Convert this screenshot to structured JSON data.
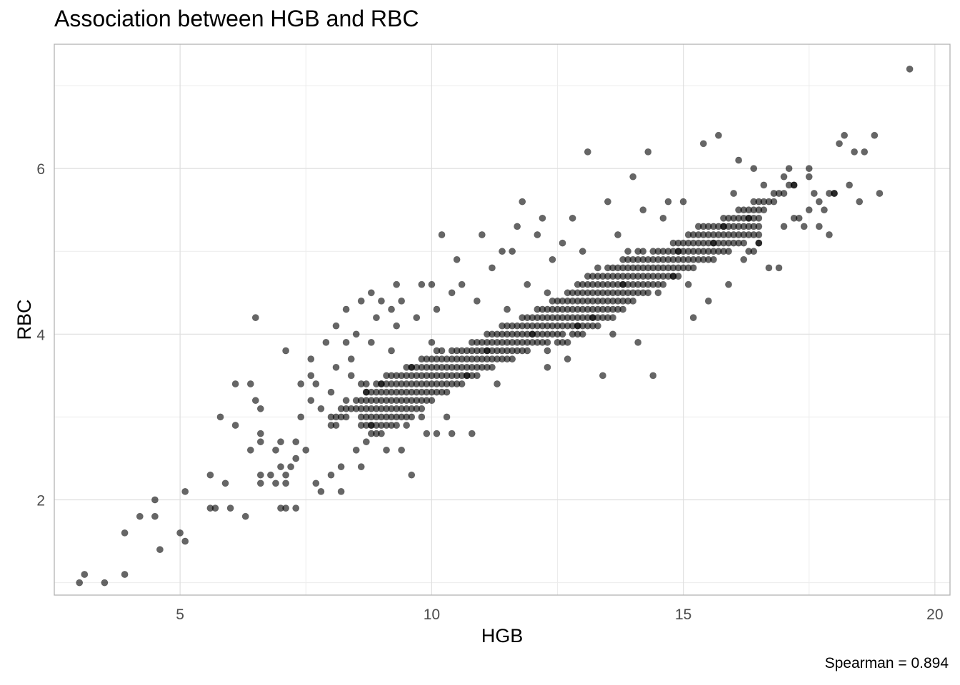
{
  "chart_data": {
    "type": "scatter",
    "title": "Association between HGB and RBC",
    "xlabel": "HGB",
    "ylabel": "RBC",
    "caption": "Spearman = 0.894",
    "xlim": [
      2.5,
      20.3
    ],
    "ylim": [
      0.85,
      7.5
    ],
    "x_ticks": [
      5,
      10,
      15,
      20
    ],
    "y_ticks": [
      2,
      4,
      6
    ],
    "x_tick_labels": [
      "5",
      "10",
      "15",
      "20"
    ],
    "y_tick_labels": [
      "2",
      "4",
      "6"
    ],
    "grid": true,
    "point_color": "#000000",
    "point_opacity": 0.6,
    "points": [
      [
        3.0,
        1.0
      ],
      [
        3.1,
        1.1
      ],
      [
        3.5,
        1.0
      ],
      [
        3.9,
        1.1
      ],
      [
        3.9,
        1.6
      ],
      [
        4.2,
        1.8
      ],
      [
        4.5,
        1.8
      ],
      [
        4.5,
        2.0
      ],
      [
        4.6,
        1.4
      ],
      [
        5.0,
        1.6
      ],
      [
        5.1,
        1.5
      ],
      [
        5.1,
        2.1
      ],
      [
        5.6,
        2.3
      ],
      [
        5.6,
        1.9
      ],
      [
        5.7,
        1.9
      ],
      [
        5.8,
        3.0
      ],
      [
        5.9,
        2.2
      ],
      [
        6.0,
        1.9
      ],
      [
        6.1,
        2.9
      ],
      [
        6.1,
        3.4
      ],
      [
        6.3,
        1.8
      ],
      [
        6.4,
        2.6
      ],
      [
        6.4,
        3.4
      ],
      [
        6.5,
        4.2
      ],
      [
        6.5,
        3.2
      ],
      [
        6.6,
        2.8
      ],
      [
        6.6,
        2.7
      ],
      [
        6.6,
        3.1
      ],
      [
        6.6,
        2.3
      ],
      [
        6.6,
        2.2
      ],
      [
        6.8,
        2.3
      ],
      [
        6.9,
        2.2
      ],
      [
        6.9,
        2.6
      ],
      [
        7.0,
        2.7
      ],
      [
        7.0,
        2.4
      ],
      [
        7.0,
        1.9
      ],
      [
        7.1,
        1.9
      ],
      [
        7.1,
        3.8
      ],
      [
        7.1,
        2.3
      ],
      [
        7.1,
        2.2
      ],
      [
        7.2,
        2.4
      ],
      [
        7.3,
        2.5
      ],
      [
        7.3,
        1.9
      ],
      [
        7.3,
        2.7
      ],
      [
        7.4,
        3.4
      ],
      [
        7.4,
        3.0
      ],
      [
        7.5,
        2.6
      ],
      [
        7.6,
        3.2
      ],
      [
        7.6,
        3.5
      ],
      [
        7.6,
        3.7
      ],
      [
        7.7,
        2.2
      ],
      [
        7.7,
        3.4
      ],
      [
        7.8,
        2.1
      ],
      [
        7.8,
        3.1
      ],
      [
        7.9,
        3.9
      ],
      [
        8.0,
        3.3
      ],
      [
        8.0,
        2.3
      ],
      [
        8.1,
        4.1
      ],
      [
        8.1,
        3.6
      ],
      [
        8.2,
        2.1
      ],
      [
        8.2,
        2.4
      ],
      [
        8.3,
        3.2
      ],
      [
        8.3,
        3.9
      ],
      [
        8.3,
        4.3
      ],
      [
        8.4,
        3.7
      ],
      [
        8.4,
        3.5
      ],
      [
        8.5,
        4.0
      ],
      [
        8.5,
        2.6
      ],
      [
        8.6,
        2.4
      ],
      [
        8.6,
        3.4
      ],
      [
        8.6,
        4.4
      ],
      [
        8.7,
        3.4
      ],
      [
        8.7,
        3.3
      ],
      [
        8.8,
        4.5
      ],
      [
        8.8,
        3.9
      ],
      [
        8.8,
        2.9
      ],
      [
        8.9,
        4.2
      ],
      [
        9.0,
        3.4
      ],
      [
        9.0,
        4.4
      ],
      [
        9.1,
        2.6
      ],
      [
        9.2,
        3.8
      ],
      [
        9.2,
        4.3
      ],
      [
        9.3,
        4.6
      ],
      [
        9.3,
        4.1
      ],
      [
        9.4,
        2.6
      ],
      [
        9.4,
        4.4
      ],
      [
        9.5,
        2.9
      ],
      [
        9.6,
        2.3
      ],
      [
        9.6,
        3.6
      ],
      [
        9.7,
        4.2
      ],
      [
        9.8,
        3.0
      ],
      [
        9.8,
        4.6
      ],
      [
        9.9,
        2.8
      ],
      [
        10.0,
        4.6
      ],
      [
        10.0,
        3.9
      ],
      [
        10.1,
        2.8
      ],
      [
        10.1,
        4.3
      ],
      [
        10.2,
        5.2
      ],
      [
        10.3,
        3.0
      ],
      [
        10.4,
        4.5
      ],
      [
        10.4,
        2.8
      ],
      [
        10.5,
        4.9
      ],
      [
        10.6,
        4.6
      ],
      [
        10.7,
        3.5
      ],
      [
        10.8,
        2.8
      ],
      [
        10.9,
        4.4
      ],
      [
        11.0,
        5.2
      ],
      [
        11.1,
        3.8
      ],
      [
        11.2,
        4.8
      ],
      [
        11.3,
        3.4
      ],
      [
        11.4,
        5.0
      ],
      [
        11.5,
        4.3
      ],
      [
        11.6,
        5.0
      ],
      [
        11.7,
        5.3
      ],
      [
        11.8,
        5.6
      ],
      [
        11.9,
        4.6
      ],
      [
        12.0,
        4.0
      ],
      [
        12.1,
        5.2
      ],
      [
        12.2,
        5.4
      ],
      [
        12.3,
        4.5
      ],
      [
        12.3,
        3.6
      ],
      [
        12.4,
        4.9
      ],
      [
        12.6,
        5.1
      ],
      [
        12.7,
        3.7
      ],
      [
        12.8,
        5.4
      ],
      [
        12.9,
        4.1
      ],
      [
        13.0,
        5.0
      ],
      [
        13.1,
        6.2
      ],
      [
        13.2,
        4.2
      ],
      [
        13.3,
        4.8
      ],
      [
        13.4,
        3.5
      ],
      [
        13.5,
        5.6
      ],
      [
        13.6,
        4.0
      ],
      [
        13.7,
        5.2
      ],
      [
        13.8,
        4.6
      ],
      [
        13.9,
        5.0
      ],
      [
        14.0,
        5.9
      ],
      [
        14.1,
        3.9
      ],
      [
        14.2,
        5.5
      ],
      [
        14.3,
        6.2
      ],
      [
        14.4,
        3.5
      ],
      [
        14.5,
        4.5
      ],
      [
        14.6,
        5.4
      ],
      [
        14.7,
        5.6
      ],
      [
        14.8,
        4.7
      ],
      [
        14.9,
        5.0
      ],
      [
        15.0,
        5.6
      ],
      [
        15.1,
        4.6
      ],
      [
        15.2,
        4.2
      ],
      [
        15.3,
        5.3
      ],
      [
        15.4,
        6.3
      ],
      [
        15.5,
        4.4
      ],
      [
        15.6,
        5.1
      ],
      [
        15.7,
        6.4
      ],
      [
        15.8,
        5.3
      ],
      [
        15.9,
        4.6
      ],
      [
        16.0,
        5.7
      ],
      [
        16.1,
        6.1
      ],
      [
        16.2,
        4.9
      ],
      [
        16.3,
        5.4
      ],
      [
        16.4,
        6.0
      ],
      [
        16.5,
        5.1
      ],
      [
        16.6,
        5.8
      ],
      [
        16.7,
        4.8
      ],
      [
        16.9,
        4.8
      ],
      [
        17.0,
        5.9
      ],
      [
        17.1,
        6.0
      ],
      [
        17.2,
        5.8
      ],
      [
        17.4,
        5.3
      ],
      [
        17.5,
        6.0
      ],
      [
        17.6,
        5.7
      ],
      [
        17.7,
        5.3
      ],
      [
        17.8,
        5.5
      ],
      [
        17.9,
        5.2
      ],
      [
        18.0,
        5.7
      ],
      [
        18.1,
        6.3
      ],
      [
        18.2,
        6.4
      ],
      [
        18.3,
        5.8
      ],
      [
        18.4,
        6.2
      ],
      [
        18.5,
        5.6
      ],
      [
        18.6,
        6.2
      ],
      [
        18.8,
        6.4
      ],
      [
        18.9,
        5.7
      ],
      [
        19.5,
        7.2
      ]
    ]
  }
}
